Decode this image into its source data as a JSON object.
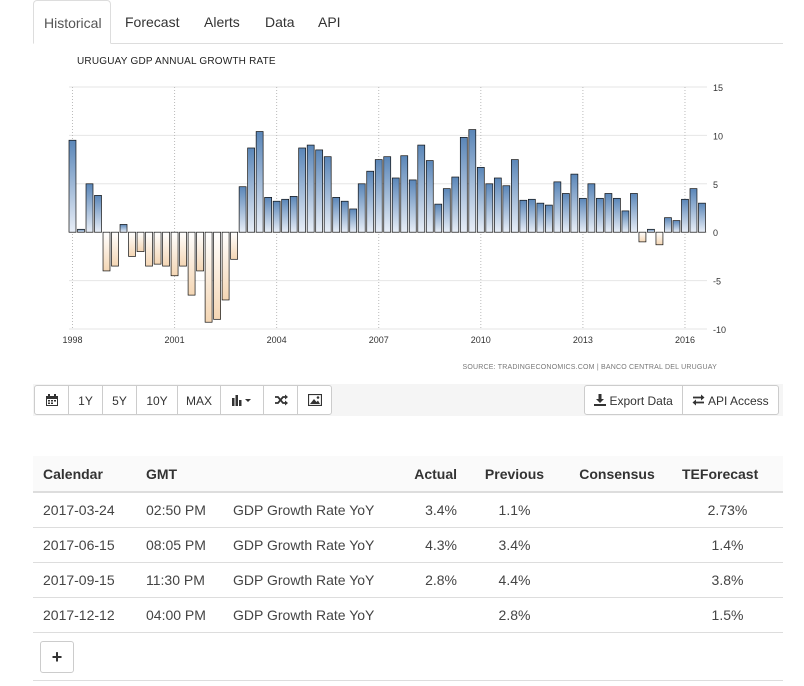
{
  "tabs": [
    "Historical",
    "Forecast",
    "Alerts",
    "Data",
    "API"
  ],
  "active_tab": "Historical",
  "colors": {
    "positive_top": "#5a86b8",
    "positive_bottom": "#e8eef7",
    "negative_top": "#fff",
    "negative_bottom": "#f4d6b4",
    "bar_stroke": "#111"
  },
  "chart_data": {
    "type": "bar",
    "title": "URUGUAY GDP ANNUAL GROWTH RATE",
    "source": "SOURCE: TRADINGECONOMICS.COM | BANCO CENTRAL DEL URUGUAY",
    "ylim": [
      -10,
      15
    ],
    "yticks": [
      15,
      10,
      5,
      0,
      -5,
      -10
    ],
    "xticks": [
      "1998",
      "2001",
      "2004",
      "2007",
      "2010",
      "2013",
      "2016"
    ],
    "y_axis_side": "right",
    "grid": true,
    "series": [
      {
        "values": [
          9.5,
          0.3,
          5.0,
          3.8,
          -4.0,
          -3.5,
          0.8,
          -2.5,
          -2.0,
          -3.5,
          -3.3,
          -3.5,
          -4.5,
          -3.5,
          -6.5,
          -4.0,
          -9.3,
          -9.0,
          -7.0,
          -2.8,
          4.7,
          8.7,
          10.4,
          3.6,
          3.2,
          3.4,
          3.7,
          8.7,
          9.0,
          8.5,
          7.8,
          3.6,
          3.2,
          2.4,
          5.0,
          6.3,
          7.5,
          7.8,
          5.6,
          7.9,
          5.4,
          9.0,
          7.4,
          2.9,
          4.5,
          5.7,
          9.8,
          10.6,
          6.7,
          5.0,
          5.6,
          4.8,
          7.5,
          3.3,
          3.4,
          3.0,
          2.8,
          5.2,
          4.0,
          6.0,
          3.5,
          5.0,
          3.5,
          4.0,
          3.5,
          2.2,
          4.0,
          -1.0,
          0.3,
          -1.3,
          1.5,
          1.2,
          3.4,
          4.5,
          3.0
        ]
      }
    ]
  },
  "toolbar": {
    "ranges": [
      "1Y",
      "5Y",
      "10Y",
      "MAX"
    ],
    "calendar_icon": "calendar-icon",
    "chart_type_icon": "bar-chart-icon",
    "shuffle_icon": "shuffle-icon",
    "image_icon": "image-icon",
    "export_label": "Export Data",
    "api_label": "API Access"
  },
  "table": {
    "headers": [
      "Calendar",
      "GMT",
      "",
      "Actual",
      "Previous",
      "Consensus",
      "TEForecast"
    ],
    "rows": [
      [
        "2017-03-24",
        "02:50 PM",
        "GDP Growth Rate YoY",
        "3.4%",
        "1.1%",
        "",
        "2.73%"
      ],
      [
        "2017-06-15",
        "08:05 PM",
        "GDP Growth Rate YoY",
        "4.3%",
        "3.4%",
        "",
        "1.4%"
      ],
      [
        "2017-09-15",
        "11:30 PM",
        "GDP Growth Rate YoY",
        "2.8%",
        "4.4%",
        "",
        "3.8%"
      ],
      [
        "2017-12-12",
        "04:00 PM",
        "GDP Growth Rate YoY",
        "",
        "2.8%",
        "",
        "1.5%"
      ]
    ]
  },
  "add_button": "+"
}
